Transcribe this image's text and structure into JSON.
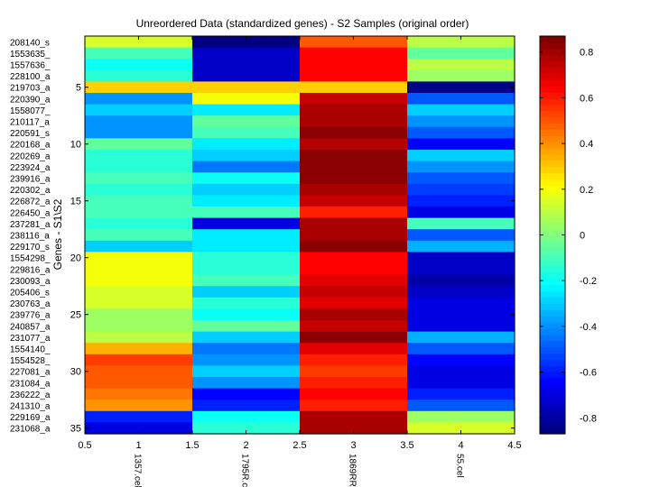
{
  "chart_data": {
    "type": "heatmap",
    "title": "Unreordered Data (standardized genes) - S2 Samples (original order)",
    "ylabel": "Genes - S1\\S2",
    "xlabel": "",
    "x_ticks": [
      "0.5",
      "1",
      "1.5",
      "2",
      "2.5",
      "3",
      "3.5",
      "4",
      "4.5"
    ],
    "y_ticks": [
      "5",
      "10",
      "15",
      "20",
      "25",
      "30",
      "35"
    ],
    "columns": [
      "1357.cel",
      "1795R.c",
      "1869RR",
      "55.cel"
    ],
    "rows": [
      "208140_s",
      "1553635_",
      "1557636_",
      "228100_a",
      "219703_a",
      "220390_a",
      "1558077_",
      "210117_a",
      "220591_s",
      "220168_a",
      "220269_a",
      "223924_a",
      "239916_a",
      "220302_a",
      "226872_a",
      "226450_a",
      "237281_a",
      "238116_a",
      "229170_s",
      "1554298_",
      "229816_a",
      "230093_a",
      "205406_s",
      "230763_a",
      "239776_a",
      "240857_a",
      "231077_a",
      "1554140_",
      "1554528_",
      "227081_a",
      "231084_a",
      "236222_a",
      "241310_a",
      "229169_a",
      "231068_a"
    ],
    "values": [
      [
        0.15,
        -0.87,
        0.5,
        0.1
      ],
      [
        -0.1,
        -0.75,
        0.65,
        -0.05
      ],
      [
        -0.2,
        -0.75,
        0.65,
        0.1
      ],
      [
        -0.15,
        -0.75,
        0.65,
        0.05
      ],
      [
        0.3,
        0.3,
        0.3,
        -0.85
      ],
      [
        -0.4,
        0.2,
        0.75,
        -0.5
      ],
      [
        -0.3,
        -0.25,
        0.8,
        -0.3
      ],
      [
        -0.4,
        -0.05,
        0.8,
        -0.4
      ],
      [
        -0.4,
        -0.1,
        0.85,
        -0.5
      ],
      [
        -0.05,
        -0.25,
        0.78,
        -0.65
      ],
      [
        -0.15,
        -0.3,
        0.85,
        -0.3
      ],
      [
        -0.15,
        -0.45,
        0.85,
        -0.4
      ],
      [
        -0.1,
        -0.2,
        0.85,
        -0.5
      ],
      [
        -0.15,
        -0.3,
        0.8,
        -0.55
      ],
      [
        -0.1,
        -0.25,
        0.75,
        -0.6
      ],
      [
        -0.1,
        -0.1,
        0.6,
        -0.7
      ],
      [
        -0.15,
        -0.7,
        0.8,
        -0.1
      ],
      [
        -0.1,
        -0.25,
        0.8,
        -0.5
      ],
      [
        -0.3,
        -0.25,
        0.85,
        -0.35
      ],
      [
        0.2,
        -0.15,
        0.65,
        -0.75
      ],
      [
        0.2,
        -0.15,
        0.65,
        -0.75
      ],
      [
        0.2,
        -0.1,
        0.7,
        -0.8
      ],
      [
        0.15,
        -0.3,
        0.75,
        -0.75
      ],
      [
        0.15,
        -0.15,
        0.7,
        -0.7
      ],
      [
        0.05,
        -0.2,
        0.8,
        -0.7
      ],
      [
        0.05,
        -0.05,
        0.75,
        -0.7
      ],
      [
        0.1,
        -0.3,
        0.85,
        -0.35
      ],
      [
        0.35,
        -0.45,
        0.7,
        -0.5
      ],
      [
        0.55,
        -0.4,
        0.6,
        -0.65
      ],
      [
        0.5,
        -0.3,
        0.55,
        -0.7
      ],
      [
        0.5,
        -0.4,
        0.6,
        -0.7
      ],
      [
        0.45,
        -0.65,
        0.65,
        -0.6
      ],
      [
        0.4,
        -0.6,
        0.6,
        -0.5
      ],
      [
        -0.6,
        -0.2,
        0.8,
        0.05
      ],
      [
        -0.7,
        -0.15,
        0.8,
        0.15
      ]
    ],
    "colorbar": {
      "range": [
        -0.87,
        0.87
      ],
      "ticks": [
        "-0.8",
        "-0.6",
        "-0.4",
        "-0.2",
        "0",
        "0.2",
        "0.4",
        "0.6",
        "0.8"
      ],
      "colormap": "jet"
    },
    "grid": false
  }
}
